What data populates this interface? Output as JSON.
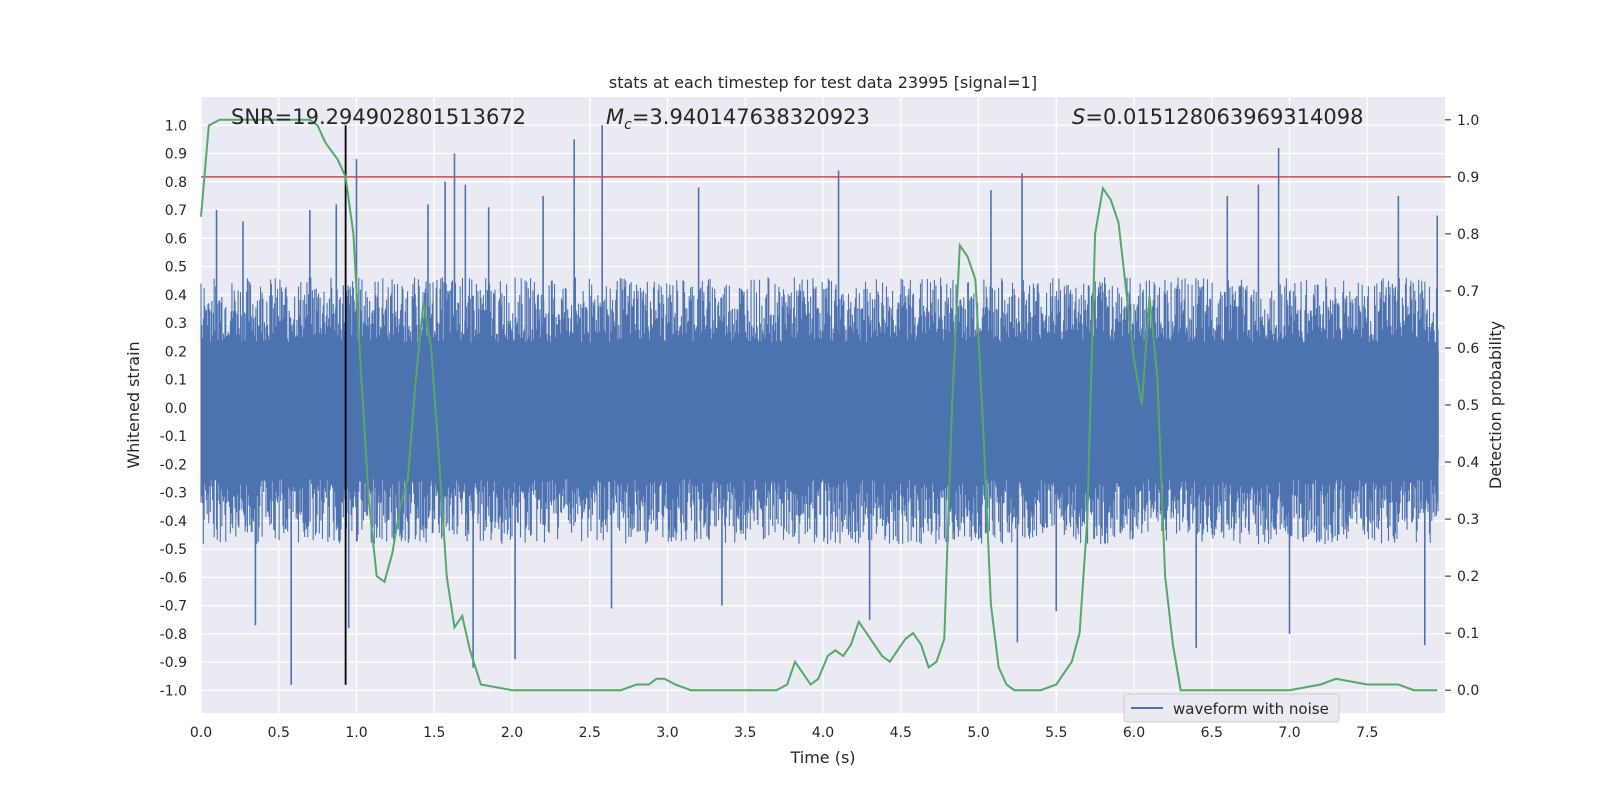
{
  "chart_data": {
    "type": "line",
    "title": "stats at each timestep for test data 23995 [signal=1]",
    "xlabel": "Time (s)",
    "ylabel_left": "Whitened strain",
    "ylabel_right": "Detection probability",
    "xlim": [
      0.0,
      8.0
    ],
    "ylim_left": [
      -1.08,
      1.1
    ],
    "ylim_right": [
      -0.04,
      1.04
    ],
    "x_ticks": [
      "0.0",
      "0.5",
      "1.0",
      "1.5",
      "2.0",
      "2.5",
      "3.0",
      "3.5",
      "4.0",
      "4.5",
      "5.0",
      "5.5",
      "6.0",
      "6.5",
      "7.0",
      "7.5"
    ],
    "y_ticks_left": [
      "1.0",
      "0.9",
      "0.8",
      "0.7",
      "0.6",
      "0.5",
      "0.4",
      "0.3",
      "0.2",
      "0.1",
      "0.0",
      "-0.1",
      "-0.2",
      "-0.3",
      "-0.4",
      "-0.5",
      "-0.6",
      "-0.7",
      "-0.8",
      "-0.9",
      "-1.0"
    ],
    "y_ticks_right": [
      "1.0",
      "0.9",
      "0.8",
      "0.7",
      "0.6",
      "0.5",
      "0.4",
      "0.3",
      "0.2",
      "0.1",
      "0.0"
    ],
    "annotations": {
      "snr": "SNR=19.294902801513672",
      "mc_symbol": "M",
      "mc_sub": "c",
      "mc_value": "=3.940147638320923",
      "s_symbol": "S",
      "s_value": "=0.015128063969314098"
    },
    "threshold": {
      "value": 0.9,
      "axis": "right",
      "color": "#c44e52"
    },
    "marker_line": {
      "x": 0.93,
      "y_from": -0.98,
      "y_to": 1.0,
      "color": "#000000"
    },
    "legend": {
      "label": "waveform with noise",
      "color": "#4c72b0",
      "location": "lower-right"
    },
    "series": [
      {
        "name": "waveform with noise",
        "axis": "left",
        "color": "#4c72b0",
        "envelope_typical": 0.42,
        "spikes": [
          {
            "x": 0.1,
            "y": 0.7
          },
          {
            "x": 0.27,
            "y": 0.66
          },
          {
            "x": 0.35,
            "y": -0.77
          },
          {
            "x": 0.58,
            "y": -0.98
          },
          {
            "x": 0.7,
            "y": 0.7
          },
          {
            "x": 0.87,
            "y": 0.72
          },
          {
            "x": 0.95,
            "y": -0.78
          },
          {
            "x": 1.0,
            "y": 0.88
          },
          {
            "x": 1.46,
            "y": 0.72
          },
          {
            "x": 1.57,
            "y": 0.8
          },
          {
            "x": 1.63,
            "y": 0.9
          },
          {
            "x": 1.7,
            "y": 0.79
          },
          {
            "x": 1.75,
            "y": -0.92
          },
          {
            "x": 1.85,
            "y": 0.71
          },
          {
            "x": 2.02,
            "y": -0.89
          },
          {
            "x": 2.2,
            "y": 0.75
          },
          {
            "x": 2.4,
            "y": 0.95
          },
          {
            "x": 2.58,
            "y": 1.0
          },
          {
            "x": 2.64,
            "y": -0.71
          },
          {
            "x": 3.2,
            "y": 0.78
          },
          {
            "x": 3.35,
            "y": -0.7
          },
          {
            "x": 4.1,
            "y": 0.84
          },
          {
            "x": 4.3,
            "y": -0.75
          },
          {
            "x": 5.08,
            "y": 0.77
          },
          {
            "x": 5.25,
            "y": -0.83
          },
          {
            "x": 5.28,
            "y": 0.83
          },
          {
            "x": 5.5,
            "y": -0.72
          },
          {
            "x": 6.4,
            "y": -0.85
          },
          {
            "x": 6.6,
            "y": 0.75
          },
          {
            "x": 6.8,
            "y": 0.79
          },
          {
            "x": 6.93,
            "y": 0.92
          },
          {
            "x": 7.0,
            "y": -0.8
          },
          {
            "x": 7.7,
            "y": 0.75
          },
          {
            "x": 7.87,
            "y": -0.84
          },
          {
            "x": 7.95,
            "y": 0.68
          }
        ]
      },
      {
        "name": "detection probability",
        "axis": "right",
        "color": "#55a868",
        "x": [
          0.0,
          0.05,
          0.12,
          0.2,
          0.3,
          0.4,
          0.5,
          0.6,
          0.7,
          0.75,
          0.8,
          0.88,
          0.93,
          0.98,
          1.03,
          1.08,
          1.13,
          1.18,
          1.23,
          1.28,
          1.33,
          1.38,
          1.43,
          1.48,
          1.53,
          1.58,
          1.63,
          1.68,
          1.73,
          1.8,
          2.0,
          2.5,
          2.7,
          2.8,
          2.88,
          2.93,
          2.98,
          3.05,
          3.15,
          3.5,
          3.7,
          3.77,
          3.82,
          3.87,
          3.92,
          3.97,
          4.03,
          4.08,
          4.13,
          4.18,
          4.23,
          4.28,
          4.33,
          4.38,
          4.43,
          4.48,
          4.53,
          4.58,
          4.63,
          4.68,
          4.73,
          4.78,
          4.83,
          4.88,
          4.93,
          4.98,
          5.03,
          5.08,
          5.13,
          5.18,
          5.23,
          5.3,
          5.4,
          5.5,
          5.55,
          5.6,
          5.65,
          5.7,
          5.75,
          5.8,
          5.85,
          5.9,
          5.95,
          6.0,
          6.05,
          6.1,
          6.15,
          6.2,
          6.25,
          6.3,
          6.5,
          7.0,
          7.2,
          7.3,
          7.5,
          7.7,
          7.8,
          7.95
        ],
        "y": [
          0.83,
          0.99,
          1.0,
          1.0,
          1.0,
          1.0,
          1.0,
          1.0,
          1.0,
          0.99,
          0.96,
          0.93,
          0.9,
          0.8,
          0.55,
          0.33,
          0.2,
          0.19,
          0.24,
          0.32,
          0.37,
          0.54,
          0.68,
          0.6,
          0.41,
          0.2,
          0.11,
          0.13,
          0.07,
          0.01,
          0.0,
          0.0,
          0.0,
          0.01,
          0.01,
          0.02,
          0.02,
          0.01,
          0.0,
          0.0,
          0.0,
          0.01,
          0.05,
          0.03,
          0.01,
          0.02,
          0.06,
          0.07,
          0.06,
          0.08,
          0.12,
          0.1,
          0.08,
          0.06,
          0.05,
          0.07,
          0.09,
          0.1,
          0.08,
          0.04,
          0.05,
          0.09,
          0.5,
          0.78,
          0.76,
          0.72,
          0.46,
          0.15,
          0.04,
          0.01,
          0.0,
          0.0,
          0.0,
          0.01,
          0.03,
          0.05,
          0.1,
          0.3,
          0.8,
          0.88,
          0.86,
          0.82,
          0.7,
          0.58,
          0.5,
          0.69,
          0.55,
          0.2,
          0.08,
          0.0,
          0.0,
          0.0,
          0.01,
          0.02,
          0.01,
          0.01,
          0.0,
          0.0
        ]
      }
    ]
  }
}
